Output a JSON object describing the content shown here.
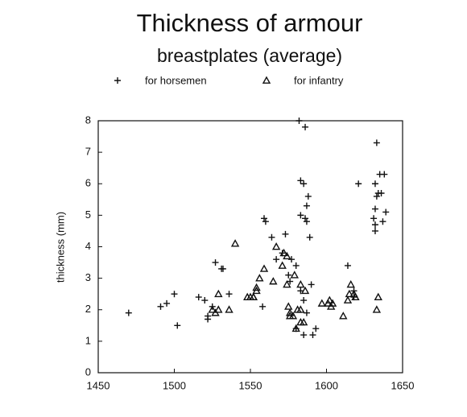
{
  "chart_data": {
    "type": "scatter",
    "title": "Thickness of armour",
    "subtitle": "breastplates (average)",
    "y_label": "thickness (mm)",
    "xlim": [
      1450,
      1650
    ],
    "xticks": [
      1450,
      1500,
      1550,
      1600,
      1650
    ],
    "ylim": [
      0,
      8
    ],
    "yticks": [
      0,
      1,
      2,
      3,
      4,
      5,
      6,
      7,
      8
    ],
    "series": [
      {
        "name": "for horsemen",
        "marker": "plus",
        "color": "#111111",
        "x": [
          1470,
          1491,
          1495,
          1500,
          1502,
          1516,
          1520,
          1522,
          1522,
          1525,
          1527,
          1531,
          1532,
          1536,
          1558,
          1559,
          1560,
          1564,
          1567,
          1571,
          1573,
          1575,
          1576,
          1577,
          1580,
          1582,
          1586,
          1583,
          1585,
          1588,
          1587,
          1583,
          1586,
          1587,
          1589,
          1590,
          1583,
          1585,
          1587,
          1580,
          1585,
          1591,
          1593,
          1614,
          1621,
          1618,
          1618,
          1633,
          1632,
          1635,
          1638,
          1633,
          1634,
          1636,
          1632,
          1631,
          1632,
          1632,
          1637,
          1639
        ],
        "values": [
          1.9,
          2.1,
          2.2,
          2.5,
          1.5,
          2.4,
          2.3,
          1.8,
          1.7,
          2.1,
          3.5,
          3.3,
          3.3,
          2.5,
          2.1,
          4.9,
          4.8,
          4.3,
          3.6,
          3.8,
          4.4,
          3.1,
          2.9,
          3.6,
          3.4,
          8.0,
          7.8,
          6.1,
          6.0,
          5.6,
          5.3,
          5.0,
          4.9,
          4.8,
          4.3,
          2.8,
          2.6,
          2.3,
          1.9,
          1.4,
          1.2,
          1.2,
          1.4,
          3.4,
          6.0,
          2.4,
          2.6,
          7.3,
          6.0,
          6.3,
          6.3,
          5.6,
          5.7,
          5.7,
          5.2,
          4.9,
          4.7,
          4.5,
          4.8,
          5.1
        ]
      },
      {
        "name": "for infantry",
        "marker": "triangle",
        "color": "#111111",
        "x": [
          1525,
          1527,
          1529,
          1529,
          1536,
          1540,
          1548,
          1550,
          1552,
          1554,
          1554,
          1552,
          1556,
          1559,
          1565,
          1567,
          1571,
          1572,
          1574,
          1574,
          1575,
          1576,
          1576,
          1578,
          1579,
          1580,
          1581,
          1583,
          1583,
          1585,
          1583,
          1586,
          1597,
          1601,
          1602,
          1603,
          1604,
          1611,
          1614,
          1615,
          1616,
          1618,
          1619,
          1634,
          1633
        ],
        "values": [
          2.0,
          1.9,
          2.0,
          2.5,
          2.0,
          4.1,
          2.4,
          2.4,
          2.4,
          2.7,
          2.6,
          2.4,
          3.0,
          3.3,
          2.9,
          4.0,
          3.4,
          3.8,
          3.7,
          2.8,
          2.1,
          1.9,
          1.8,
          1.8,
          3.1,
          1.4,
          2.0,
          2.0,
          1.6,
          1.6,
          2.8,
          2.6,
          2.2,
          2.2,
          2.3,
          2.1,
          2.2,
          1.8,
          2.3,
          2.5,
          2.8,
          2.5,
          2.4,
          2.4,
          2.0
        ]
      }
    ]
  }
}
